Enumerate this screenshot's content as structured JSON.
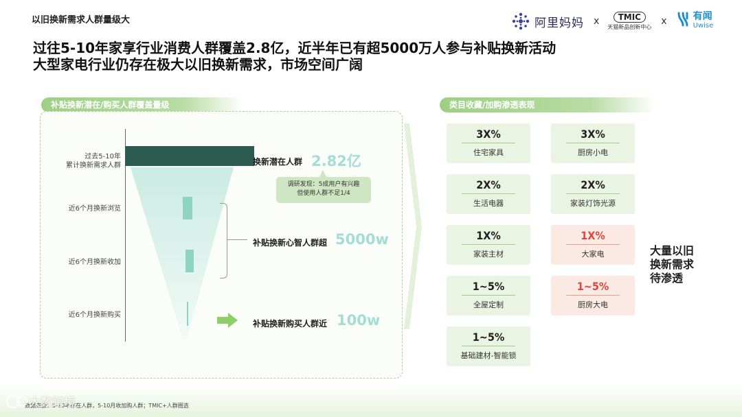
{
  "header": {
    "title": "以旧换新需求人群量级大",
    "headline_line1": "过往5-10年家享行业消费人群覆盖2.8亿，近半年已有超5000万人参与补贴换新活动",
    "headline_line2": "大型家电行业仍存在极大以旧换新需求，市场空间广阔",
    "logo_alimama": "阿里妈妈",
    "logo_sep": "x",
    "logo_tmic": "TMIC",
    "logo_tmic_sub": "天猫新品创新中心",
    "logo_uwise_cn": "有闻",
    "logo_uwise_en": "Uwise"
  },
  "left": {
    "pill": "补贴换新潜在/购买人群覆盖量级",
    "row1_label_a": "过去5-10年",
    "row1_label_b": "累计换新需求人群",
    "row2_label": "近6个月换新浏览",
    "row3_label": "近6个月换新收加",
    "row4_label": "近6个月换新购买",
    "potential_text": "换新潜在人群",
    "potential_num": "2.82亿",
    "note_line1": "调研发现：5成用户有兴趣",
    "note_line2": "但使用人群不足1/4",
    "mind_text": "补贴换新心智人群超",
    "mind_num": "5000w",
    "buy_text": "补贴换新购买人群近",
    "buy_num": "100w",
    "arrow_icon": "right-arrow-icon"
  },
  "right": {
    "pill": "类目收藏/加购渗透表现",
    "cards": [
      {
        "value": "3X%",
        "label": "住宅家具",
        "highlight": false
      },
      {
        "value": "3X%",
        "label": "厨房小电",
        "highlight": false
      },
      {
        "value": "2X%",
        "label": "生活电器",
        "highlight": false
      },
      {
        "value": "2X%",
        "label": "家装灯饰光源",
        "highlight": false
      },
      {
        "value": "1X%",
        "label": "家装主材",
        "highlight": false
      },
      {
        "value": "1X%",
        "label": "大家电",
        "highlight": true
      },
      {
        "value": "1~5%",
        "label": "全屋定制",
        "highlight": false
      },
      {
        "value": "1~5%",
        "label": "厨房大电",
        "highlight": true
      },
      {
        "value": "1~5%",
        "label": "基础建材-智能锁",
        "highlight": false
      }
    ],
    "side_line1": "大量以旧",
    "side_line2": "换新需求",
    "side_line3": "待渗透"
  },
  "footer": {
    "source": "数据来源：5-10年存在人群，5-10月收加购人群；TMIC+人群圈选",
    "watermark": "大数跨境"
  },
  "colors": {
    "accent_green": "#9dcf84",
    "teal_bar": "#2e5b50",
    "mint_number": "#a3ddd4",
    "highlight_red": "#e2443c"
  }
}
